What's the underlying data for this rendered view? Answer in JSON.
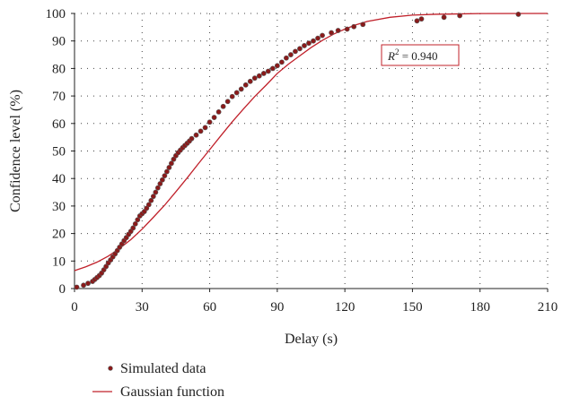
{
  "chart_data": {
    "type": "scatter",
    "xlabel": "Delay (s)",
    "ylabel": "Confidence level (%)",
    "xlim": [
      0,
      210
    ],
    "ylim": [
      0,
      100
    ],
    "x_ticks": [
      "0",
      "30",
      "60",
      "90",
      "120",
      "150",
      "180",
      "210"
    ],
    "y_ticks": [
      "0",
      "10",
      "20",
      "30",
      "40",
      "50",
      "60",
      "70",
      "80",
      "90",
      "100"
    ],
    "grid": "dotted",
    "annotation": {
      "r2_label": "R",
      "r2_sup": "2",
      "r2_value": " = 0.940"
    },
    "legend": {
      "placement": "bottom-left",
      "entries": [
        "Simulated data",
        "Gaussian function"
      ]
    },
    "colors": {
      "marker_fill": "#8b1a1a",
      "marker_edge": "#5a5a5a",
      "fit_line": "#c0202a",
      "grid": "#444444"
    },
    "series": [
      {
        "name": "Simulated data",
        "kind": "scatter",
        "points": [
          [
            1,
            0.5
          ],
          [
            4,
            1.2
          ],
          [
            6,
            1.9
          ],
          [
            8,
            2.6
          ],
          [
            9,
            3.3
          ],
          [
            10,
            4.0
          ],
          [
            11,
            4.7
          ],
          [
            12,
            5.6
          ],
          [
            13,
            6.8
          ],
          [
            14,
            8.0
          ],
          [
            15,
            9.3
          ],
          [
            16,
            10.4
          ],
          [
            17,
            11.5
          ],
          [
            18,
            12.6
          ],
          [
            19,
            13.8
          ],
          [
            20,
            15.0
          ],
          [
            21,
            16.2
          ],
          [
            22,
            17.4
          ],
          [
            23,
            18.5
          ],
          [
            24,
            19.7
          ],
          [
            25,
            20.8
          ],
          [
            26,
            22.0
          ],
          [
            27,
            23.5
          ],
          [
            28,
            25.0
          ],
          [
            29,
            26.4
          ],
          [
            30,
            27.2
          ],
          [
            31,
            28.0
          ],
          [
            32,
            29.2
          ],
          [
            33,
            30.5
          ],
          [
            34,
            32.0
          ],
          [
            35,
            33.5
          ],
          [
            36,
            35.0
          ],
          [
            37,
            36.6
          ],
          [
            38,
            38.1
          ],
          [
            39,
            39.5
          ],
          [
            40,
            41.0
          ],
          [
            41,
            42.5
          ],
          [
            42,
            44.0
          ],
          [
            43,
            45.5
          ],
          [
            44,
            47.0
          ],
          [
            45,
            48.3
          ],
          [
            46,
            49.4
          ],
          [
            47,
            50.3
          ],
          [
            48,
            51.2
          ],
          [
            49,
            52.0
          ],
          [
            50,
            52.8
          ],
          [
            51,
            53.6
          ],
          [
            52,
            54.5
          ],
          [
            54,
            55.8
          ],
          [
            56,
            57.2
          ],
          [
            58,
            58.5
          ],
          [
            60,
            60.5
          ],
          [
            62,
            62.2
          ],
          [
            64,
            64.2
          ],
          [
            66,
            66.2
          ],
          [
            68,
            68.0
          ],
          [
            70,
            69.8
          ],
          [
            72,
            71.2
          ],
          [
            74,
            72.5
          ],
          [
            76,
            74.0
          ],
          [
            78,
            75.3
          ],
          [
            80,
            76.5
          ],
          [
            82,
            77.3
          ],
          [
            84,
            78.2
          ],
          [
            86,
            79.0
          ],
          [
            88,
            80.0
          ],
          [
            90,
            81.0
          ],
          [
            92,
            82.3
          ],
          [
            94,
            83.8
          ],
          [
            96,
            85.0
          ],
          [
            98,
            86.2
          ],
          [
            100,
            87.2
          ],
          [
            102,
            88.3
          ],
          [
            104,
            89.2
          ],
          [
            106,
            90.0
          ],
          [
            108,
            91.0
          ],
          [
            110,
            92.0
          ],
          [
            114,
            93.0
          ],
          [
            117,
            93.8
          ],
          [
            121,
            94.3
          ],
          [
            124,
            95.2
          ],
          [
            128,
            96.0
          ],
          [
            152,
            97.3
          ],
          [
            154,
            98.0
          ],
          [
            164,
            98.6
          ],
          [
            171,
            99.2
          ],
          [
            197,
            99.7
          ]
        ]
      },
      {
        "name": "Gaussian function",
        "kind": "line",
        "mu": 60,
        "sigma": 38,
        "points": [
          [
            0,
            6.5
          ],
          [
            5,
            7.9
          ],
          [
            10,
            9.6
          ],
          [
            15,
            11.8
          ],
          [
            20,
            14.6
          ],
          [
            25,
            17.8
          ],
          [
            30,
            21.6
          ],
          [
            35,
            25.9
          ],
          [
            40,
            30.3
          ],
          [
            45,
            35.2
          ],
          [
            50,
            40.2
          ],
          [
            55,
            45.4
          ],
          [
            60,
            50.5
          ],
          [
            65,
            55.6
          ],
          [
            70,
            60.6
          ],
          [
            75,
            65.3
          ],
          [
            80,
            69.8
          ],
          [
            85,
            73.9
          ],
          [
            90,
            78.2
          ],
          [
            95,
            81.6
          ],
          [
            100,
            84.6
          ],
          [
            105,
            87.6
          ],
          [
            110,
            90.2
          ],
          [
            115,
            92.5
          ],
          [
            120,
            94.3
          ],
          [
            125,
            95.9
          ],
          [
            130,
            97.1
          ],
          [
            140,
            98.6
          ],
          [
            150,
            99.4
          ],
          [
            160,
            99.7
          ],
          [
            180,
            99.95
          ],
          [
            210,
            100
          ]
        ]
      }
    ]
  }
}
